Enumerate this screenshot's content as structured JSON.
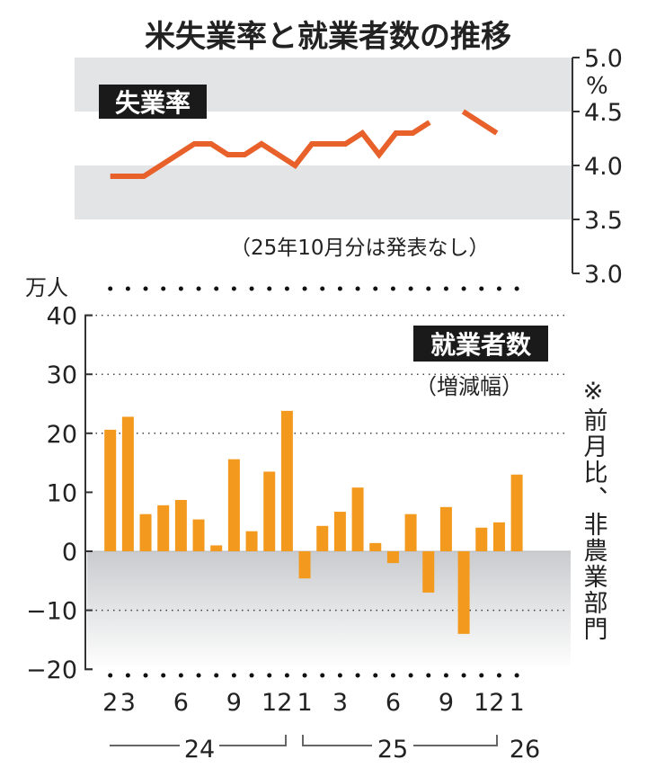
{
  "title": "米失業率と就業者数の推移",
  "colors": {
    "line": "#e8602a",
    "bar": "#f39a1e",
    "band": "#e3e4e6",
    "label_bg": "#1a1a1a"
  },
  "chart_data": [
    {
      "type": "line",
      "label": "失業率",
      "unit": "%",
      "note": "（25年10月分は発表なし）",
      "ylim": [
        3.0,
        5.0
      ],
      "yticks": [
        "5.0",
        "4.5",
        "4.0",
        "3.5",
        "3.0"
      ],
      "axis_side": "right",
      "x": [
        "2024-02",
        "2024-03",
        "2024-04",
        "2024-05",
        "2024-06",
        "2024-07",
        "2024-08",
        "2024-09",
        "2024-10",
        "2024-11",
        "2024-12",
        "2025-01",
        "2025-02",
        "2025-03",
        "2025-04",
        "2025-05",
        "2025-06",
        "2025-07",
        "2025-08",
        "2025-09",
        "2025-10",
        "2025-11",
        "2025-12",
        "2026-01"
      ],
      "values": [
        3.9,
        3.9,
        3.9,
        4.0,
        4.1,
        4.2,
        4.2,
        4.1,
        4.1,
        4.2,
        4.1,
        4.0,
        4.2,
        4.2,
        4.2,
        4.3,
        4.1,
        4.3,
        4.3,
        4.4,
        null,
        4.5,
        4.4,
        4.3
      ]
    },
    {
      "type": "bar",
      "label": "就業者数",
      "sublabel": "（増減幅）",
      "unit": "万人",
      "note": "※前月比、非農業部門",
      "ylim": [
        -20,
        40
      ],
      "yticks": [
        "40",
        "30",
        "20",
        "10",
        "0",
        "-10",
        "-20"
      ],
      "grid": true,
      "x": [
        "2024-02",
        "2024-03",
        "2024-04",
        "2024-05",
        "2024-06",
        "2024-07",
        "2024-08",
        "2024-09",
        "2024-10",
        "2024-11",
        "2024-12",
        "2025-01",
        "2025-02",
        "2025-03",
        "2025-04",
        "2025-05",
        "2025-06",
        "2025-07",
        "2025-08",
        "2025-09",
        "2025-10",
        "2025-11",
        "2025-12",
        "2026-01"
      ],
      "values": [
        20.6,
        22.8,
        6.3,
        7.8,
        8.7,
        5.4,
        1.0,
        15.6,
        3.4,
        13.5,
        23.8,
        -4.6,
        4.3,
        6.7,
        10.8,
        1.4,
        -2.0,
        6.3,
        -7.0,
        7.5,
        -14.0,
        4.0,
        4.9,
        13.0
      ],
      "xtick_labels": [
        {
          "index": 0,
          "text": "2"
        },
        {
          "index": 1,
          "text": "3"
        },
        {
          "index": 4,
          "text": "6"
        },
        {
          "index": 7,
          "text": "9"
        },
        {
          "index": 10,
          "text": "12"
        },
        {
          "index": 11,
          "text": "1"
        },
        {
          "index": 13,
          "text": "3"
        },
        {
          "index": 16,
          "text": "6"
        },
        {
          "index": 19,
          "text": "9"
        },
        {
          "index": 22,
          "text": "12"
        },
        {
          "index": 23,
          "text": "1"
        }
      ],
      "year_labels": [
        "24",
        "25",
        "26"
      ]
    }
  ]
}
